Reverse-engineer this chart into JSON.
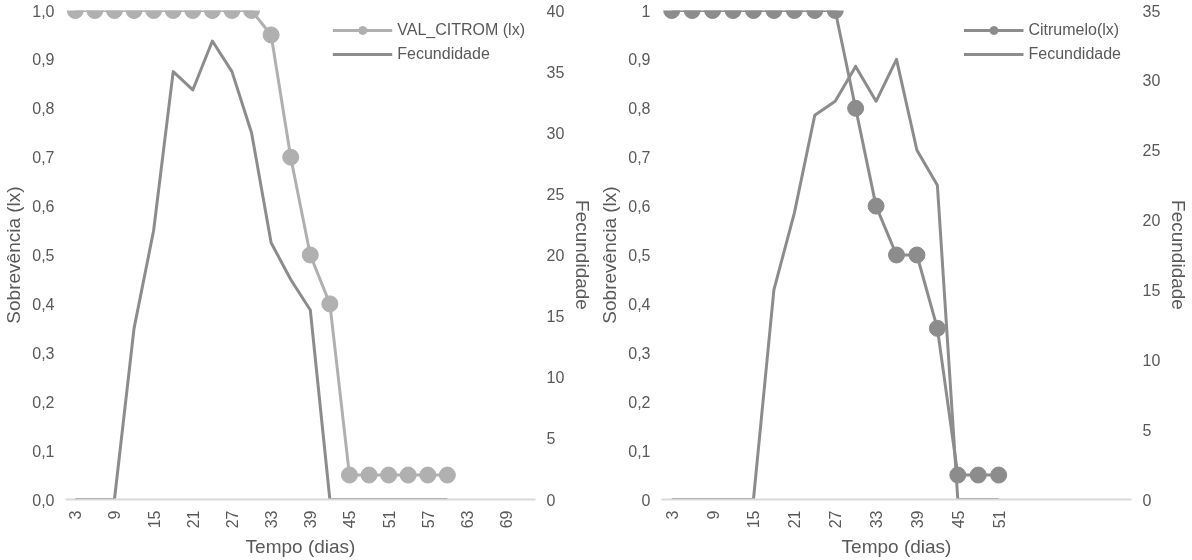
{
  "chart_data": [
    {
      "type": "line",
      "xlabel": "Tempo (dias)",
      "ylabel": "Sobrevência (lx)",
      "y2label": "Fecundidade",
      "x": [
        3,
        6,
        9,
        12,
        15,
        18,
        21,
        24,
        27,
        30,
        33,
        36,
        39,
        42,
        45,
        48,
        51,
        54,
        57,
        60
      ],
      "xlim": [
        1.5,
        73.5
      ],
      "xticks": [
        3,
        9,
        15,
        21,
        27,
        33,
        39,
        45,
        51,
        57,
        63,
        69
      ],
      "ylim": [
        0,
        1
      ],
      "yticks": [
        {
          "value": 0,
          "label": "0,0"
        },
        {
          "value": 0.1,
          "label": "0,1"
        },
        {
          "value": 0.2,
          "label": "0,2"
        },
        {
          "value": 0.3,
          "label": "0,3"
        },
        {
          "value": 0.4,
          "label": "0,4"
        },
        {
          "value": 0.5,
          "label": "0,5"
        },
        {
          "value": 0.6,
          "label": "0,6"
        },
        {
          "value": 0.7,
          "label": "0,7"
        },
        {
          "value": 0.8,
          "label": "0,8"
        },
        {
          "value": 0.9,
          "label": "0,9"
        },
        {
          "value": 1,
          "label": "1,0"
        }
      ],
      "y2lim": [
        0,
        40
      ],
      "y2ticks": [
        0,
        5,
        10,
        15,
        20,
        25,
        30,
        35,
        40
      ],
      "grid": false,
      "legend": "top right",
      "series": [
        {
          "name": "VAL_CITROM (lx)",
          "color": "#b0b0b0",
          "marker": "circle",
          "values": [
            1,
            1,
            1,
            1,
            1,
            1,
            1,
            1,
            1,
            1,
            0.95,
            0.7,
            0.5,
            0.4,
            0.05,
            0.05,
            0.05,
            0.05,
            0.05,
            0.05
          ]
        },
        {
          "name": "Fecundidade",
          "color": "#8c8c8c",
          "marker": "none",
          "axis": "y2",
          "values": [
            0,
            0,
            0,
            14,
            22,
            35,
            33.5,
            37.5,
            35,
            30,
            21,
            18,
            15.5,
            0,
            0,
            0,
            0,
            0,
            0,
            0
          ]
        }
      ]
    },
    {
      "type": "line",
      "xlabel": "Tempo (dias)",
      "ylabel": "Sobrevência (lx)",
      "y2label": "Fecundidade",
      "x": [
        3,
        6,
        9,
        12,
        15,
        18,
        21,
        24,
        27,
        30,
        33,
        36,
        39,
        42,
        45,
        48,
        51
      ],
      "xlim": [
        1.5,
        70.5
      ],
      "xticks": [
        3,
        9,
        15,
        21,
        27,
        33,
        39,
        45,
        51
      ],
      "ylim": [
        0,
        1
      ],
      "yticks": [
        0,
        {
          "value": 0.1,
          "label": "0,1"
        },
        {
          "value": 0.2,
          "label": "0,2"
        },
        {
          "value": 0.3,
          "label": "0,3"
        },
        {
          "value": 0.4,
          "label": "0,4"
        },
        {
          "value": 0.5,
          "label": "0,5"
        },
        {
          "value": 0.6,
          "label": "0,6"
        },
        {
          "value": 0.7,
          "label": "0,7"
        },
        {
          "value": 0.8,
          "label": "0,8"
        },
        {
          "value": 0.9,
          "label": "0,9"
        },
        1
      ],
      "y2lim": [
        0,
        35
      ],
      "y2ticks": [
        0,
        5,
        10,
        15,
        20,
        25,
        30,
        35
      ],
      "grid": false,
      "legend": "top right",
      "series": [
        {
          "name": "Citrumelo(lx)",
          "color": "#8c8c8c",
          "marker": "circle",
          "values": [
            1,
            1,
            1,
            1,
            1,
            1,
            1,
            1,
            1,
            0.8,
            0.6,
            0.5,
            0.5,
            0.35,
            0.05,
            0.05,
            0.05
          ]
        },
        {
          "name": "Fecundidade",
          "color": "#8c8c8c",
          "marker": "none",
          "axis": "y2",
          "values": [
            0,
            0,
            0,
            0,
            0,
            15,
            20.5,
            27.5,
            28.5,
            31,
            28.5,
            31.5,
            25,
            22.5,
            0,
            0,
            0
          ]
        }
      ]
    }
  ]
}
